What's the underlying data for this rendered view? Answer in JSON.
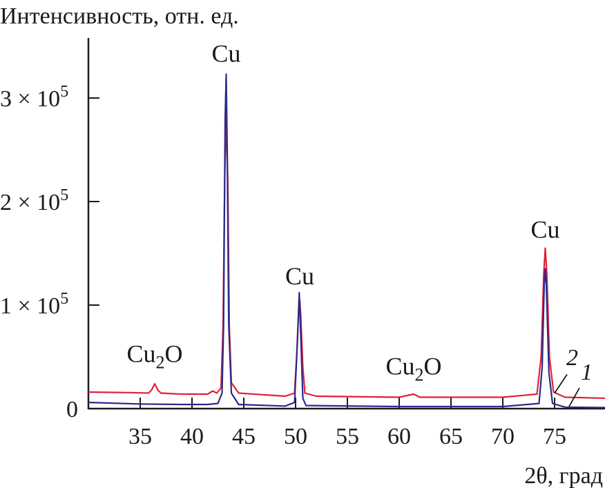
{
  "chart_data": {
    "type": "line",
    "title": "",
    "ylabel": "Интенсивность, отн. ед.",
    "xlabel": "2θ, град",
    "xlim": [
      30,
      80
    ],
    "ylim": [
      0,
      3.5
    ],
    "y_unit_note": "values in units of 10^5",
    "grid": false,
    "xticks": [
      35,
      40,
      45,
      50,
      55,
      60,
      65,
      70,
      75
    ],
    "xtick_labels": [
      "35",
      "40",
      "45",
      "50",
      "55",
      "60",
      "65",
      "70",
      "75"
    ],
    "yticks": [
      {
        "value": 0,
        "mantissa": "0",
        "exp": ""
      },
      {
        "value": 1,
        "mantissa": "1 × 10",
        "exp": "5"
      },
      {
        "value": 2,
        "mantissa": "2 × 10",
        "exp": "5"
      },
      {
        "value": 3,
        "mantissa": "3 × 10",
        "exp": "5"
      }
    ],
    "series": [
      {
        "name": "2",
        "color": "#e0203a",
        "points": [
          [
            30,
            0.16
          ],
          [
            34,
            0.155
          ],
          [
            35.8,
            0.15
          ],
          [
            36.1,
            0.18
          ],
          [
            36.4,
            0.24
          ],
          [
            36.7,
            0.18
          ],
          [
            37,
            0.15
          ],
          [
            39,
            0.14
          ],
          [
            41.5,
            0.14
          ],
          [
            42,
            0.17
          ],
          [
            42.4,
            0.15
          ],
          [
            42.8,
            0.2
          ],
          [
            43.0,
            0.8
          ],
          [
            43.15,
            2.2
          ],
          [
            43.3,
            2.8
          ],
          [
            43.45,
            2.2
          ],
          [
            43.6,
            0.8
          ],
          [
            43.8,
            0.25
          ],
          [
            44.5,
            0.15
          ],
          [
            49,
            0.12
          ],
          [
            49.9,
            0.15
          ],
          [
            50.1,
            0.5
          ],
          [
            50.3,
            0.95
          ],
          [
            50.4,
            1.05
          ],
          [
            50.5,
            0.9
          ],
          [
            50.7,
            0.4
          ],
          [
            50.9,
            0.15
          ],
          [
            52,
            0.12
          ],
          [
            60,
            0.11
          ],
          [
            61.4,
            0.14
          ],
          [
            62,
            0.11
          ],
          [
            70,
            0.11
          ],
          [
            73.3,
            0.14
          ],
          [
            73.7,
            0.5
          ],
          [
            73.95,
            1.3
          ],
          [
            74.1,
            1.55
          ],
          [
            74.25,
            1.3
          ],
          [
            74.5,
            0.5
          ],
          [
            74.9,
            0.16
          ],
          [
            76,
            0.11
          ],
          [
            80,
            0.1
          ]
        ]
      },
      {
        "name": "1",
        "color": "#2a2a8a",
        "points": [
          [
            30,
            0.06
          ],
          [
            35,
            0.045
          ],
          [
            39,
            0.04
          ],
          [
            41.5,
            0.04
          ],
          [
            42.5,
            0.05
          ],
          [
            42.9,
            0.15
          ],
          [
            43.05,
            0.8
          ],
          [
            43.2,
            2.8
          ],
          [
            43.3,
            3.23
          ],
          [
            43.4,
            2.5
          ],
          [
            43.55,
            0.8
          ],
          [
            43.8,
            0.15
          ],
          [
            44.5,
            0.04
          ],
          [
            49,
            0.025
          ],
          [
            49.9,
            0.06
          ],
          [
            50.15,
            0.6
          ],
          [
            50.35,
            1.12
          ],
          [
            50.5,
            0.7
          ],
          [
            50.7,
            0.1
          ],
          [
            51,
            0.03
          ],
          [
            60,
            0.02
          ],
          [
            70,
            0.02
          ],
          [
            73.5,
            0.05
          ],
          [
            73.8,
            0.4
          ],
          [
            74.0,
            1.2
          ],
          [
            74.1,
            1.35
          ],
          [
            74.2,
            1.2
          ],
          [
            74.45,
            0.35
          ],
          [
            74.8,
            0.05
          ],
          [
            76,
            0.015
          ],
          [
            80,
            0.01
          ]
        ]
      }
    ],
    "annotations": [
      {
        "text": "Cu",
        "sub": "",
        "tail": "",
        "x": 43.3,
        "y": 3.35
      },
      {
        "text": "Cu",
        "sub": "",
        "tail": "",
        "x": 50.4,
        "y": 1.2
      },
      {
        "text": "Cu",
        "sub": "",
        "tail": "",
        "x": 74.1,
        "y": 1.65
      },
      {
        "text": "Cu",
        "sub": "2",
        "tail": "O",
        "x": 36.4,
        "y": 0.45
      },
      {
        "text": "Cu",
        "sub": "2",
        "tail": "O",
        "x": 61.4,
        "y": 0.33
      }
    ],
    "series_labels": [
      {
        "text": "2",
        "x": 76.7,
        "y": 0.42,
        "lx1": 76.2,
        "ly1": 0.33,
        "lx2": 75.0,
        "ly2": 0.15
      },
      {
        "text": "1",
        "x": 78.1,
        "y": 0.28,
        "lx1": 77.4,
        "ly1": 0.2,
        "lx2": 76.4,
        "ly2": 0.02
      }
    ]
  }
}
